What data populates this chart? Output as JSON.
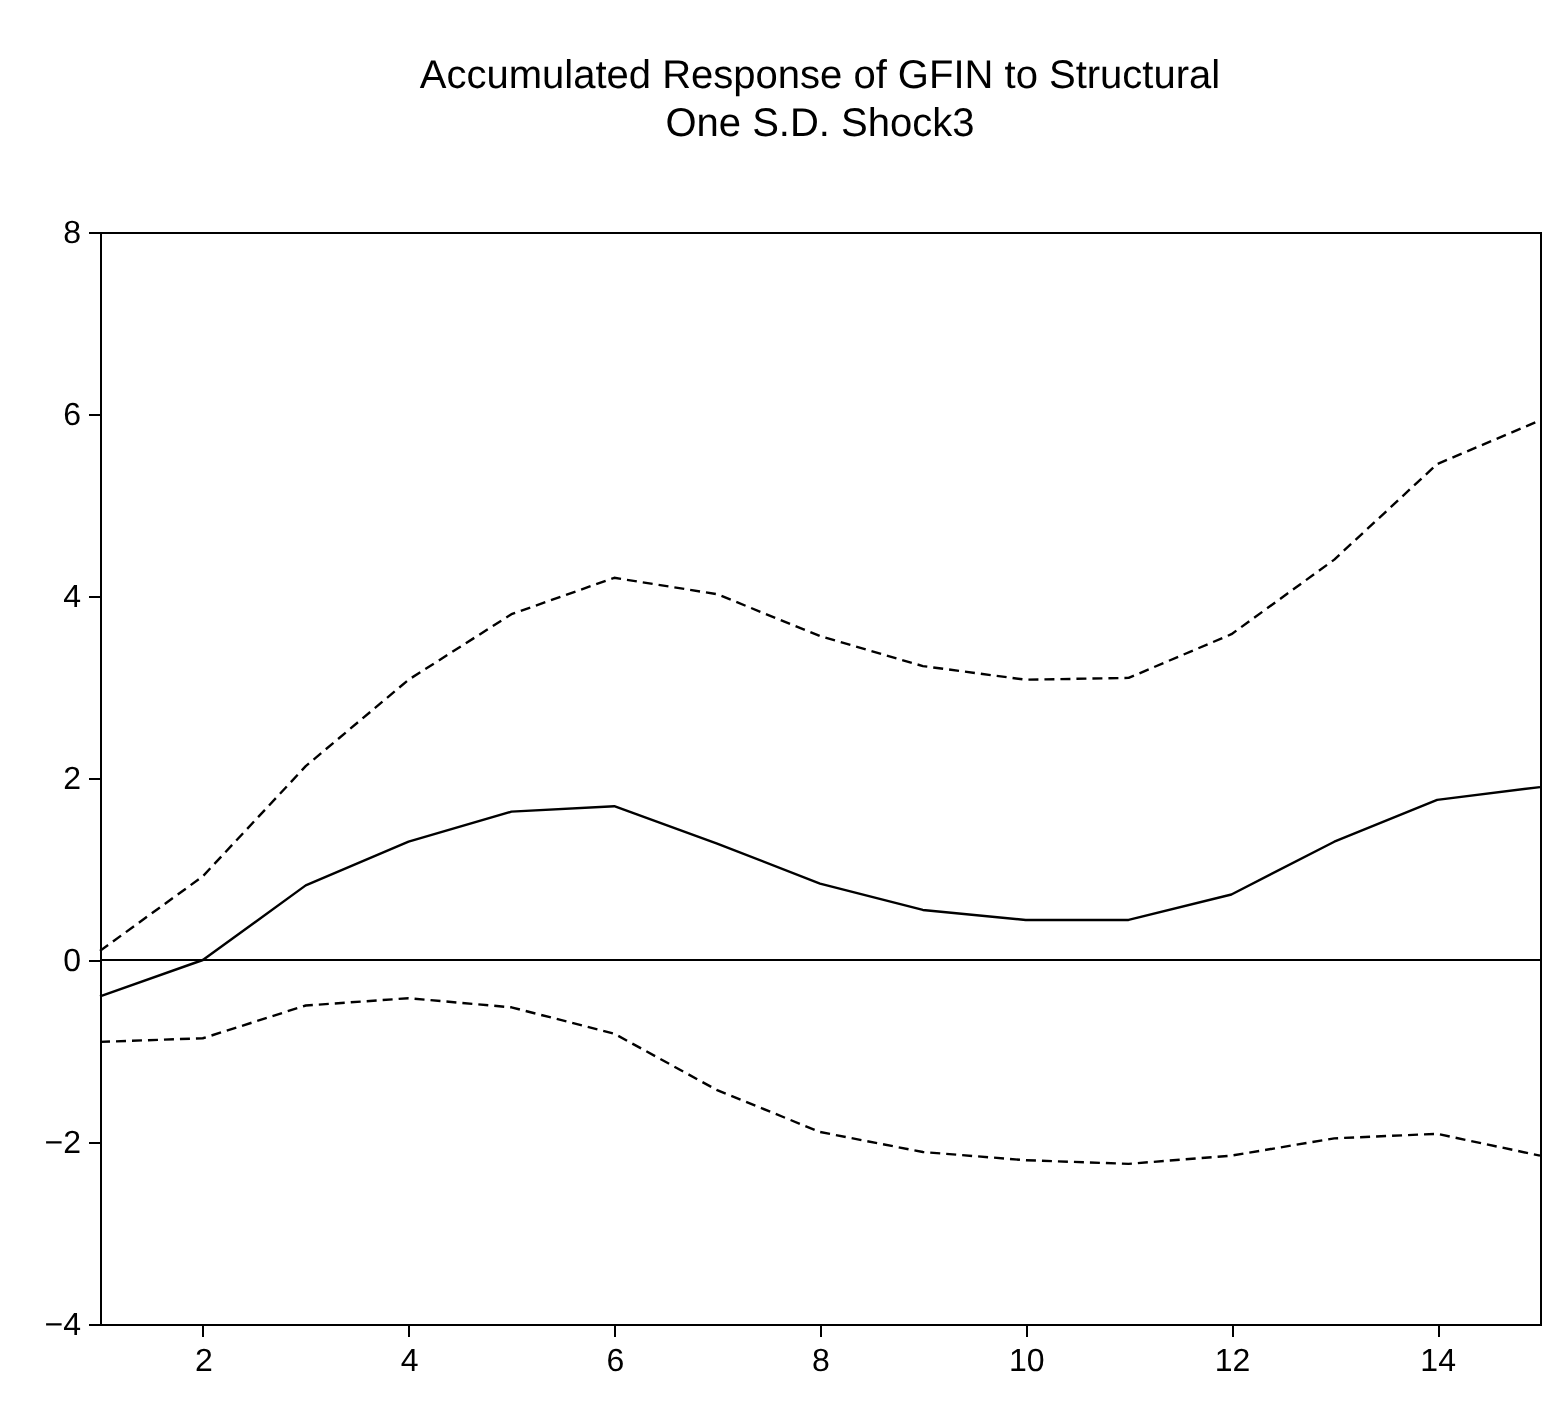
{
  "chart_data": {
    "type": "line",
    "title": "Accumulated Response of GFIN to Structural One S.D. Shock3",
    "x": [
      1,
      2,
      3,
      4,
      5,
      6,
      7,
      8,
      9,
      10,
      11,
      12,
      13,
      14,
      15
    ],
    "series": [
      {
        "color": "#000000",
        "line_style": "solid",
        "values": [
          -0.4,
          0,
          0.82,
          1.3,
          1.63,
          1.69,
          1.28,
          0.84,
          0.55,
          0.44,
          0.44,
          0.72,
          1.3,
          1.76,
          1.9
        ]
      },
      {
        "color": "#000000",
        "line_style": "dashed",
        "values": [
          0.1,
          0.92,
          2.13,
          3.08,
          3.8,
          4.2,
          4.02,
          3.56,
          3.23,
          3.08,
          3.1,
          3.58,
          4.4,
          5.45,
          5.93
        ]
      },
      {
        "color": "#000000",
        "line_style": "dashed",
        "values": [
          -0.9,
          -0.86,
          -0.5,
          -0.42,
          -0.52,
          -0.81,
          -1.43,
          -1.89,
          -2.11,
          -2.2,
          -2.24,
          -2.15,
          -1.96,
          -1.91,
          -2.15
        ]
      }
    ],
    "xlim": [
      1,
      15
    ],
    "xticks": [
      2,
      4,
      6,
      8,
      10,
      12,
      14
    ],
    "ylim": [
      -4,
      8
    ],
    "yticks": [
      -4,
      -2,
      0,
      2,
      4,
      6,
      8
    ],
    "ref_lines": [
      {
        "axis": "y",
        "value": 0,
        "color": "#000000"
      }
    ],
    "grid": false,
    "marker": "none"
  }
}
